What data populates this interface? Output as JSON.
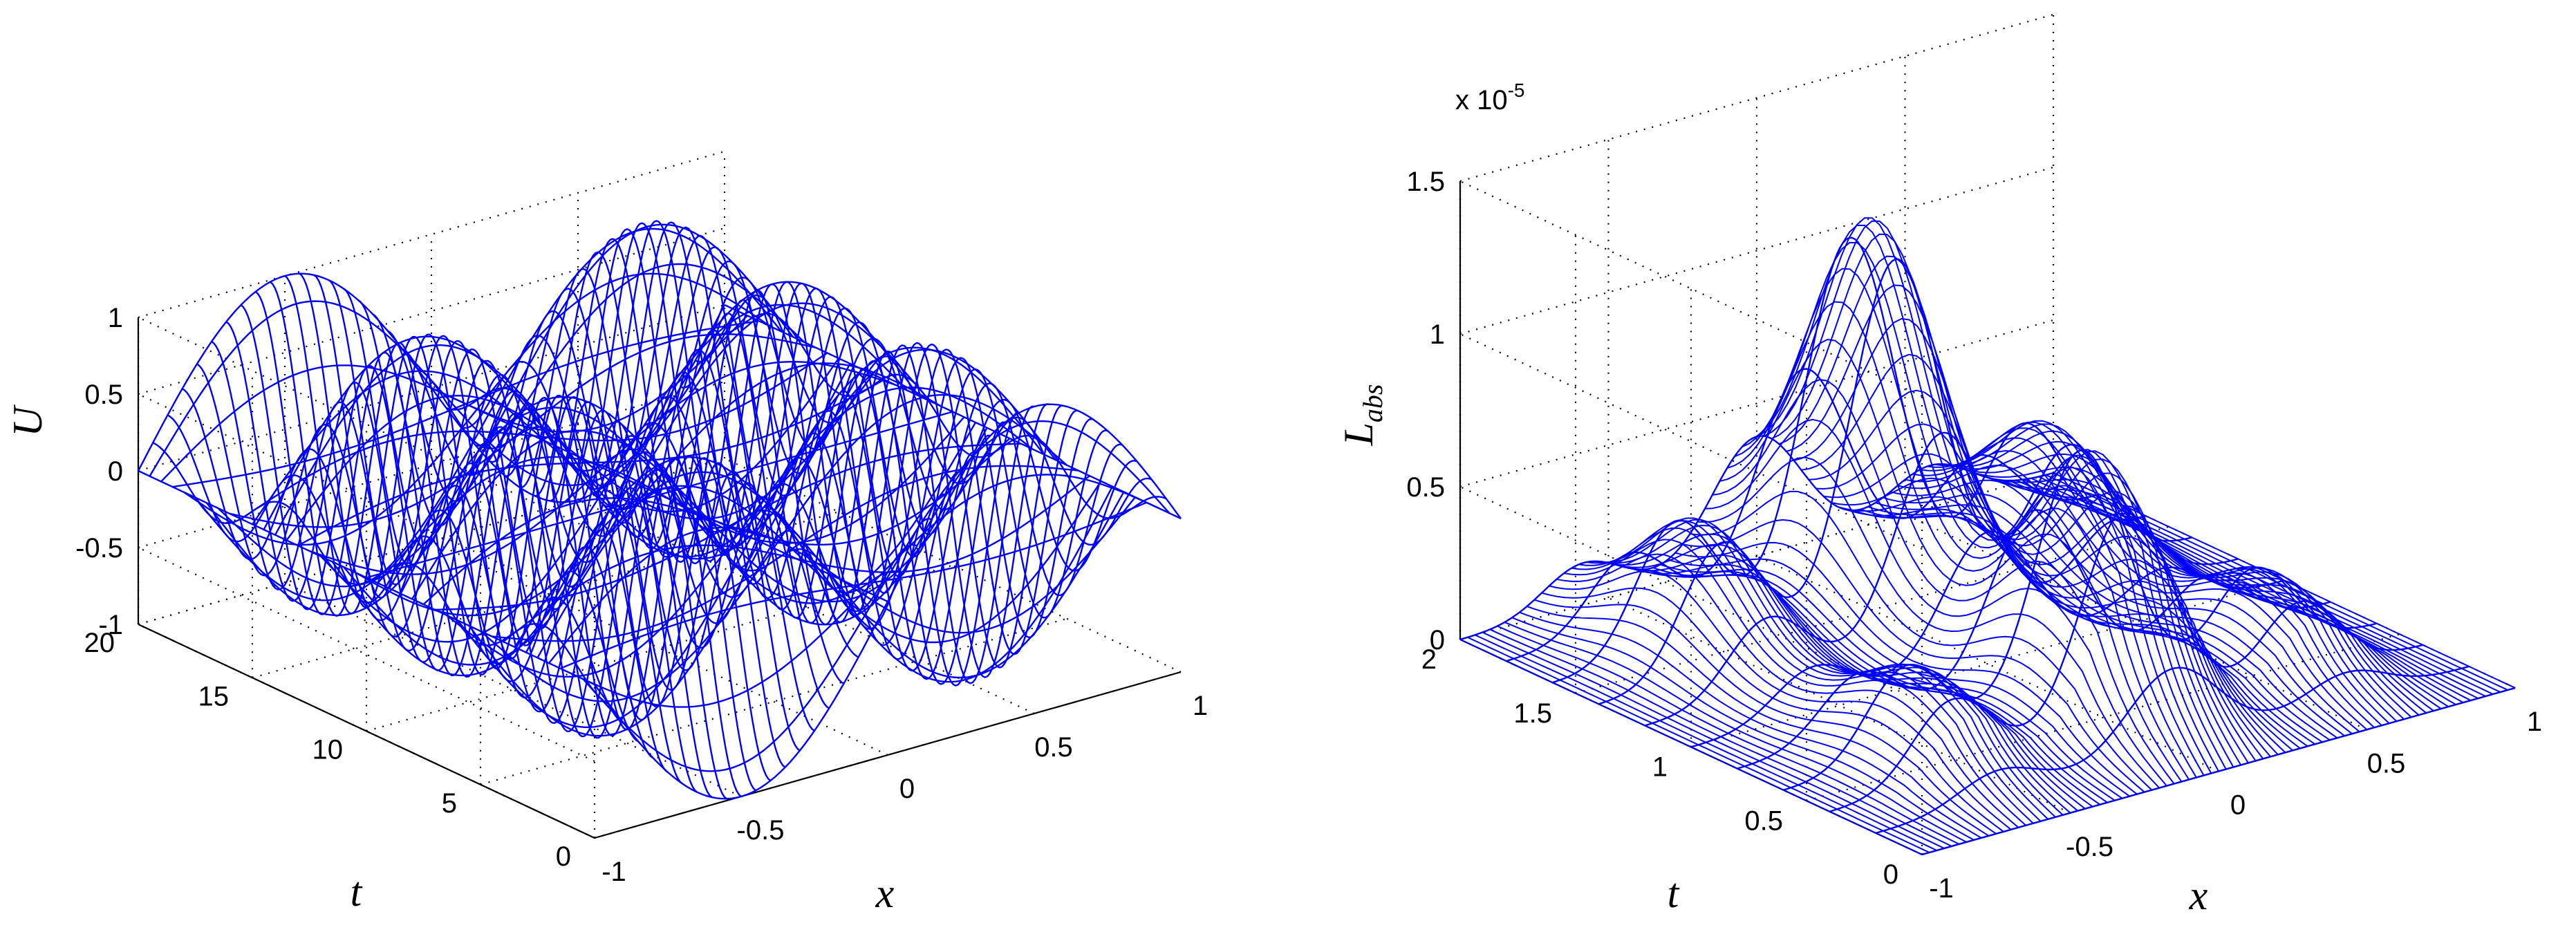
{
  "colors": {
    "surface": "#0000ff",
    "axes": "#000000",
    "background": "#ffffff"
  },
  "chart_data": [
    {
      "type": "surface-mesh",
      "function": "U",
      "zlabel": "U",
      "xlabel": "x",
      "ylabel": "t",
      "xlim": [
        -1,
        1
      ],
      "ylim": [
        0,
        20
      ],
      "zlim": [
        -1,
        1
      ],
      "x_ticks": [
        "-1",
        "-0.5",
        "0",
        "0.5",
        "1"
      ],
      "y_ticks": [
        "0",
        "5",
        "10",
        "15",
        "20"
      ],
      "z_ticks": [
        "-1",
        "-0.5",
        "0",
        "0.5",
        "1"
      ],
      "grid": true,
      "shape_note": "sin(pi x) standing wave modulated by cos(0.84 t) — 3.5 half-periods of oscillation over t in [0,20]",
      "mesh_resolution": {
        "x_lines": 41,
        "t_lines": 41
      }
    },
    {
      "type": "surface-mesh",
      "function": "L_abs",
      "zlabel": "L",
      "zlabel_sub": "abs",
      "xlabel": "x",
      "ylabel": "t",
      "xlim": [
        -1,
        1
      ],
      "ylim": [
        0,
        2
      ],
      "zlim": [
        0,
        1.5e-05
      ],
      "z_scale_base": "x 10",
      "z_scale_exp": "-5",
      "x_ticks": [
        "-1",
        "-0.5",
        "0",
        "0.5",
        "1"
      ],
      "y_ticks": [
        "0",
        "0.5",
        "1",
        "1.5",
        "2"
      ],
      "z_ticks": [
        "0",
        "0.5",
        "1",
        "1.5"
      ],
      "grid": true,
      "peak_value": 1.5,
      "mesh_resolution": {
        "x_lines": 81,
        "t_lines": 11
      }
    }
  ]
}
